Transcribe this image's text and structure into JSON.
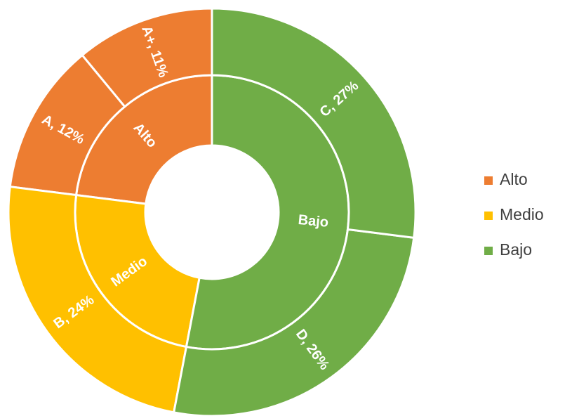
{
  "chart_data": {
    "type": "sunburst",
    "legend": "right",
    "groups": [
      {
        "name": "Alto",
        "color": "#ed7d31",
        "value": 23,
        "children": [
          {
            "label": "A+, 11%",
            "value": 11
          },
          {
            "label": "A, 12%",
            "value": 12
          }
        ]
      },
      {
        "name": "Medio",
        "color": "#ffc000",
        "value": 24,
        "children": [
          {
            "label": "B, 24%",
            "value": 24
          }
        ]
      },
      {
        "name": "Bajo",
        "color": "#70ad47",
        "value": 53,
        "children": [
          {
            "label": "D, 26%",
            "value": 26
          },
          {
            "label": "C, 27%",
            "value": 27
          }
        ]
      }
    ]
  }
}
